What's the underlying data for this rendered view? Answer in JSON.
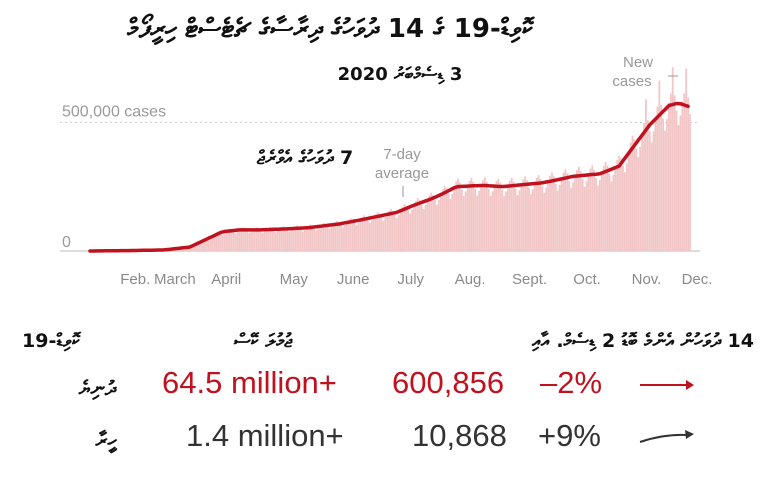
{
  "title": "ކޮވިޑް-19 ގެ 14 ދުވަހުގެ ދިރާސާގެ ޗެޓެސްޓް ހިރީފޯމް",
  "subtitle": "3 ޑިސެމްބަރު 2020",
  "colors": {
    "bar": "#f2c6c6",
    "line": "#c0111f",
    "red_text": "#c0111f",
    "dark_text": "#333333",
    "axis": "#bbbbbb"
  },
  "chart_data": {
    "type": "bar",
    "overlay": "line",
    "x_tick_labels": [
      "Feb.",
      "March",
      "April",
      "May",
      "June",
      "July",
      "Aug.",
      "Sept.",
      "Oct.",
      "Nov.",
      "Dec."
    ],
    "y_tick_labels": [
      "500,000 cases",
      "0"
    ],
    "ylim": [
      0,
      750000
    ],
    "grid": true,
    "annotations": {
      "new_cases": "New cases",
      "avg_en": "7-day average",
      "avg_dv": "7 ދުވަހުގެ އެވްރެޖް"
    },
    "series": [
      {
        "name": "7-day average",
        "x": [
          "2020-01-23",
          "2020-02-15",
          "2020-03-01",
          "2020-03-15",
          "2020-03-25",
          "2020-04-01",
          "2020-04-10",
          "2020-04-20",
          "2020-05-01",
          "2020-05-15",
          "2020-06-01",
          "2020-06-15",
          "2020-07-01",
          "2020-07-10",
          "2020-07-20",
          "2020-07-27",
          "2020-08-01",
          "2020-08-15",
          "2020-08-25",
          "2020-09-01",
          "2020-09-15",
          "2020-09-25",
          "2020-10-01",
          "2020-10-15",
          "2020-10-25",
          "2020-11-01",
          "2020-11-10",
          "2020-11-20",
          "2020-11-25",
          "2020-12-01"
        ],
        "values": [
          0,
          2000,
          4000,
          15000,
          50000,
          75000,
          82000,
          82000,
          85000,
          90000,
          105000,
          125000,
          150000,
          178000,
          205000,
          230000,
          250000,
          255000,
          250000,
          255000,
          265000,
          280000,
          290000,
          300000,
          330000,
          400000,
          490000,
          565000,
          575000,
          560000
        ]
      },
      {
        "name": "New cases",
        "x": [
          "2020-01-23",
          "2020-02-15",
          "2020-03-01",
          "2020-03-15",
          "2020-03-25",
          "2020-04-01",
          "2020-04-10",
          "2020-04-20",
          "2020-05-01",
          "2020-05-15",
          "2020-06-01",
          "2020-06-15",
          "2020-07-01",
          "2020-07-10",
          "2020-07-20",
          "2020-07-27",
          "2020-08-01",
          "2020-08-15",
          "2020-08-25",
          "2020-09-01",
          "2020-09-15",
          "2020-09-25",
          "2020-10-01",
          "2020-10-15",
          "2020-10-25",
          "2020-11-01",
          "2020-11-10",
          "2020-11-20",
          "2020-11-25",
          "2020-12-01"
        ],
        "values": [
          0,
          2000,
          4000,
          15000,
          50000,
          75000,
          82000,
          82000,
          85000,
          90000,
          105000,
          125000,
          150000,
          178000,
          205000,
          230000,
          250000,
          255000,
          250000,
          255000,
          265000,
          280000,
          290000,
          300000,
          330000,
          400000,
          490000,
          565000,
          575000,
          560000
        ]
      }
    ]
  },
  "table": {
    "col_total": "ޖުމުލަ ކޭސް",
    "col_count": "ކޮވިޑް-19",
    "col_avg": "14 ދުވަހުން އެންމެ ބޮޑު 2 ޑިސެމް. އާއި",
    "rows": [
      {
        "label": "ދުނިޔެ",
        "total": "64.5 million+",
        "avg": "600,856",
        "change": "–2%",
        "trend": "flat",
        "color": "#c0111f"
      },
      {
        "label": "ހީރާ",
        "total": "1.4 million+",
        "avg": "10,868",
        "change": "+9%",
        "trend": "up",
        "color": "#333333"
      }
    ]
  }
}
